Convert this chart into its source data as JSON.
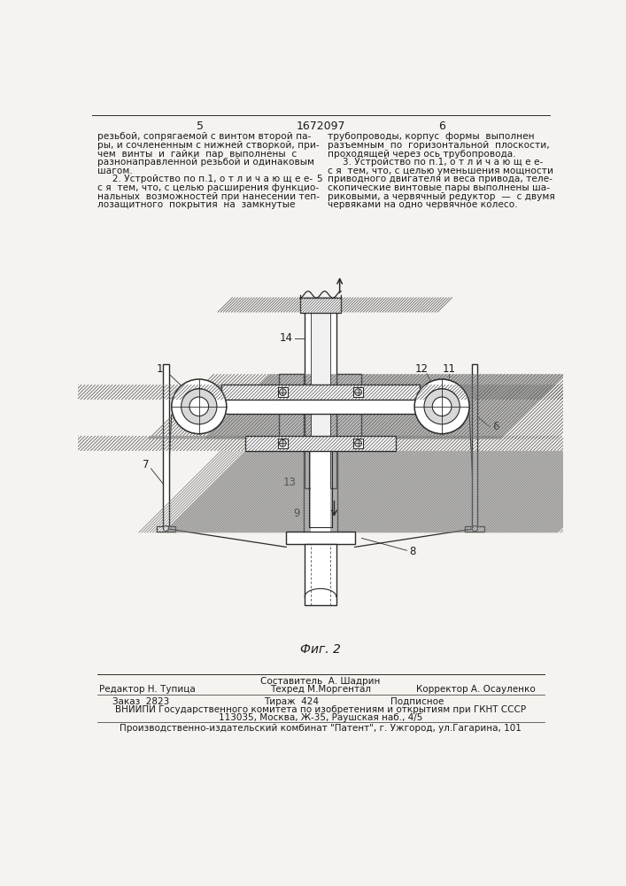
{
  "bg_color": "#f5f3ef",
  "page_width": 7.07,
  "page_height": 10.0,
  "page_num_left": "5",
  "page_num_center": "1672097",
  "page_num_right": "6",
  "col_left_text": [
    "резьбой, сопрягаемой с винтом второй па-",
    "ры, и сочлененным с нижней створкой, при-",
    "чем  винты  и  гайки  пар  выполнены  с",
    "разнонаправленной резьбой и одинаковым",
    "шагом.",
    "     2. Устройство по п.1, о т л и ч а ю щ е е-",
    "с я  тем, что, с целью расширения функцио-",
    "нальных  возможностей при нанесении теп-",
    "лозащитного  покрытия  на  замкнутые"
  ],
  "col_right_text": [
    "трубопроводы, корпус  формы  выполнен",
    "разъемным  по  горизонтальной  плоскости,",
    "проходящей через ось трубопровода.",
    "     3. Устройство по п.1, о т л и ч а ю щ е е-",
    "с я  тем, что, с целью уменьшения мощности",
    "приводного двигателя и веса привода, теле-",
    "скопические винтовые пары выполнены ша-",
    "риковыми, а червячный редуктор  —  с двумя",
    "червяками на одно червячное колесо."
  ],
  "col_margin_num": "5",
  "fig_caption": "Фиг. 2",
  "footer_line1_left": "Редактор Н. Тупица",
  "footer_line1_center_top": "Составитель  А. Шадрин",
  "footer_line1_center_bot": "Техред М.Моргентал",
  "footer_line1_right": "Корректор А. Осауленко",
  "footer_line2_left": "Заказ  2823",
  "footer_line2_center": "Тираж  424",
  "footer_line2_right": "Подписное",
  "footer_line3": "ВНИИПИ Государственного комитета по изобретениям и открытиям при ГКНТ СССР",
  "footer_line4": "113035, Москва, Ж-35, Раушская наб., 4/5",
  "footer_line5": "Производственно-издательский комбинат \"Патент\", г. Ужгород, ул.Гагарина, 101",
  "text_color": "#1a1a1a",
  "line_color": "#2a2a2a"
}
